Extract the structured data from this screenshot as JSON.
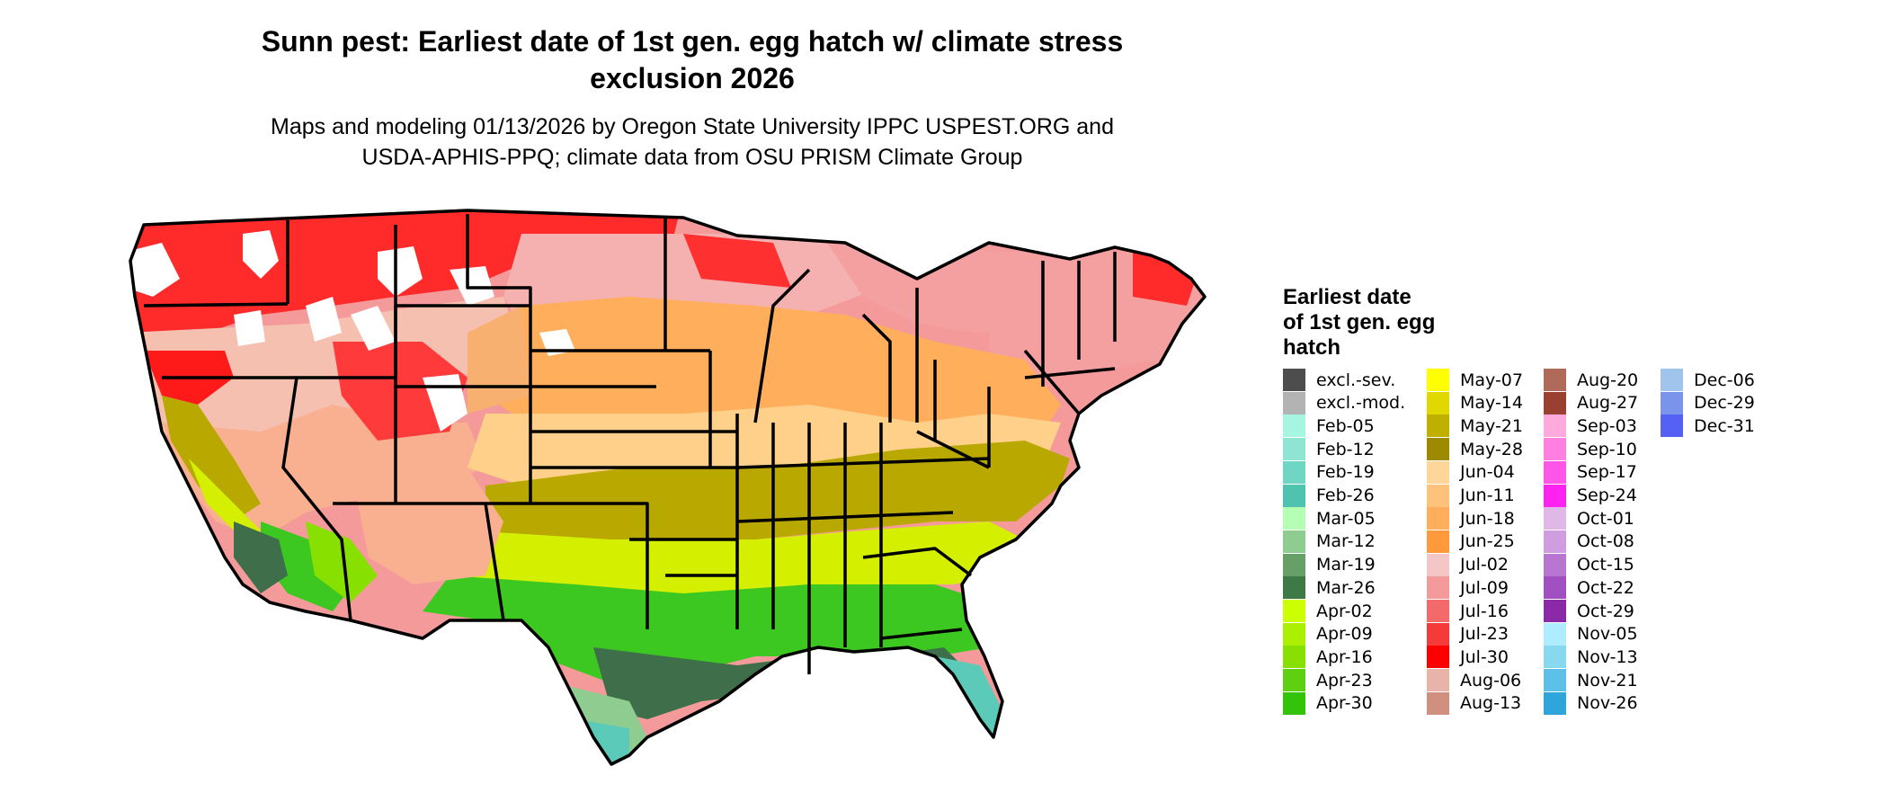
{
  "header": {
    "title_line1": "Sunn pest: Earliest date of 1st gen. egg hatch w/ climate stress",
    "title_line2": "exclusion 2026",
    "subtitle_line1": "Maps and modeling 01/13/2026 by Oregon State University IPPC USPEST.ORG and",
    "subtitle_line2": "USDA-APHIS-PPQ; climate data from OSU PRISM Climate Group"
  },
  "map": {
    "region": "contiguous United States",
    "colors": {
      "state_border": "#000000",
      "excluded_white": "#ffffff",
      "hot_red": "#ff1a1a",
      "red_light": "#f4a4a4",
      "pink_pale": "#f5c6c6",
      "orange": "#ffb05a",
      "orange_light": "#ffd08a",
      "olive": "#b8a800",
      "yellow_green": "#d4f000",
      "green": "#3cc820",
      "dark_green": "#3e6e4a",
      "teal": "#5ccab8"
    }
  },
  "legend": {
    "title_lines": [
      "Earliest date",
      "of 1st gen. egg",
      "hatch"
    ],
    "columns": [
      [
        {
          "label": "excl.-sev.",
          "color": "#4d4d4d"
        },
        {
          "label": "excl.-mod.",
          "color": "#b3b3b3"
        },
        {
          "label": "Feb-05",
          "color": "#a6f5e0"
        },
        {
          "label": "Feb-12",
          "color": "#8ee6d2"
        },
        {
          "label": "Feb-19",
          "color": "#6fd6c4"
        },
        {
          "label": "Feb-26",
          "color": "#4fc2b0"
        },
        {
          "label": "Mar-05",
          "color": "#b5ffb5"
        },
        {
          "label": "Mar-12",
          "color": "#8fcc8f"
        },
        {
          "label": "Mar-19",
          "color": "#66a066"
        },
        {
          "label": "Mar-26",
          "color": "#3d7a45"
        },
        {
          "label": "Apr-02",
          "color": "#ccff00"
        },
        {
          "label": "Apr-09",
          "color": "#aaf000"
        },
        {
          "label": "Apr-16",
          "color": "#88e000"
        },
        {
          "label": "Apr-23",
          "color": "#5fd010"
        },
        {
          "label": "Apr-30",
          "color": "#33c40a"
        }
      ],
      [
        {
          "label": "May-07",
          "color": "#ffff00"
        },
        {
          "label": "May-14",
          "color": "#e0d800"
        },
        {
          "label": "May-21",
          "color": "#bfb000"
        },
        {
          "label": "May-28",
          "color": "#9e8a00"
        },
        {
          "label": "Jun-04",
          "color": "#ffd699"
        },
        {
          "label": "Jun-11",
          "color": "#ffc27a"
        },
        {
          "label": "Jun-18",
          "color": "#ffae5c"
        },
        {
          "label": "Jun-25",
          "color": "#ff9a3c"
        },
        {
          "label": "Jul-02",
          "color": "#f5c6c6"
        },
        {
          "label": "Jul-09",
          "color": "#f49a9a"
        },
        {
          "label": "Jul-16",
          "color": "#f46a6a"
        },
        {
          "label": "Jul-23",
          "color": "#f53a3a"
        },
        {
          "label": "Jul-30",
          "color": "#ff0000"
        },
        {
          "label": "Aug-06",
          "color": "#e8b4aa"
        },
        {
          "label": "Aug-13",
          "color": "#d09080"
        }
      ],
      [
        {
          "label": "Aug-20",
          "color": "#b06a5a"
        },
        {
          "label": "Aug-27",
          "color": "#9a4030"
        },
        {
          "label": "Sep-03",
          "color": "#ffaadd"
        },
        {
          "label": "Sep-10",
          "color": "#ff80e0"
        },
        {
          "label": "Sep-17",
          "color": "#ff55e8"
        },
        {
          "label": "Sep-24",
          "color": "#ff22f0"
        },
        {
          "label": "Oct-01",
          "color": "#e0b8e8"
        },
        {
          "label": "Oct-08",
          "color": "#d09ee0"
        },
        {
          "label": "Oct-15",
          "color": "#b876d0"
        },
        {
          "label": "Oct-22",
          "color": "#a050c0"
        },
        {
          "label": "Oct-29",
          "color": "#8a2aa8"
        },
        {
          "label": "Nov-05",
          "color": "#b0ecff"
        },
        {
          "label": "Nov-13",
          "color": "#88d8f0"
        },
        {
          "label": "Nov-21",
          "color": "#5cc0e8"
        },
        {
          "label": "Nov-26",
          "color": "#2ea6dc"
        }
      ],
      [
        {
          "label": "Dec-06",
          "color": "#a0c4ec"
        },
        {
          "label": "Dec-29",
          "color": "#7a94ec"
        },
        {
          "label": "Dec-31",
          "color": "#5560f5"
        }
      ]
    ]
  }
}
